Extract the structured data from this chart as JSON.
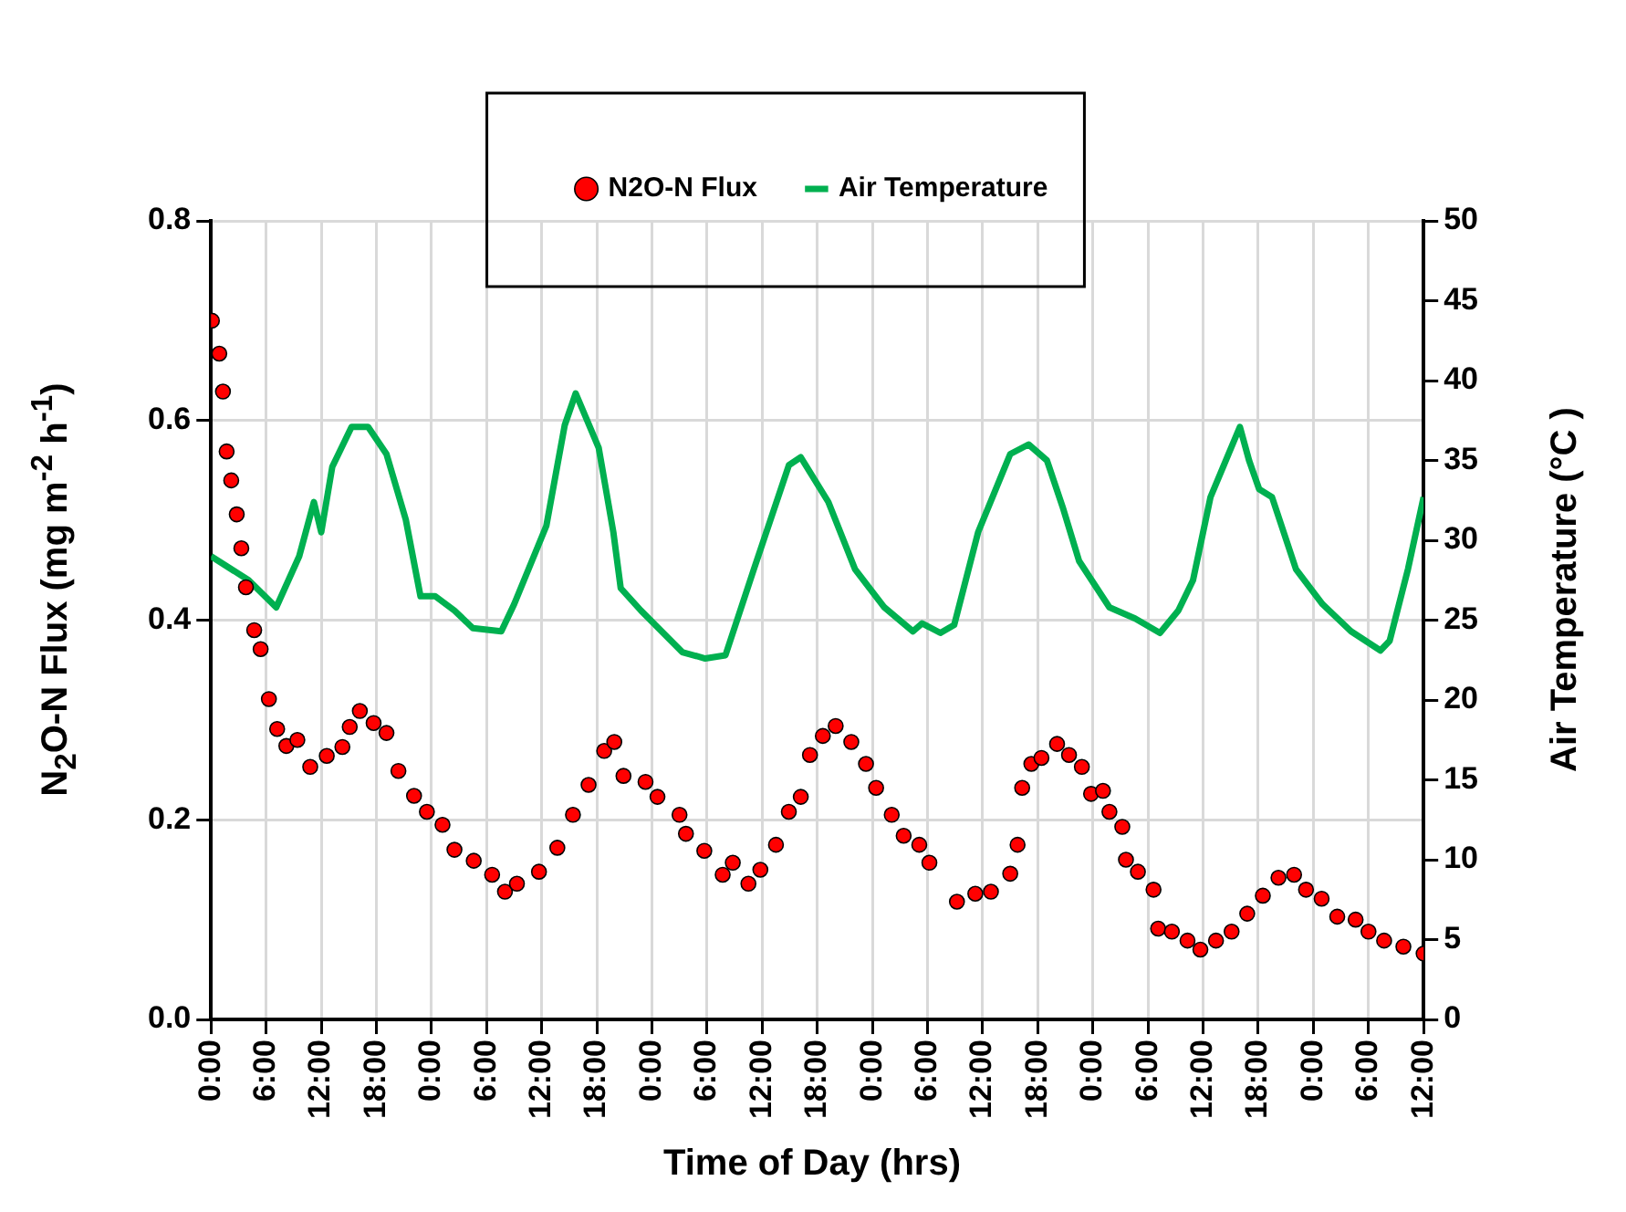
{
  "chart_data": {
    "type": "scatter",
    "xlabel": "Time of Day (hrs)",
    "ylabel": "N$_{2}$O-N Flux (mg m$^{-2}$ h$^{-1}$)",
    "y2label": "Air Temperature (°C )",
    "xlim": [
      "--01-01T00:00",
      "--01-06T12:00"
    ],
    "xticks": [
      {
        "value": "--01-01T00:00",
        "label": "0:00"
      },
      {
        "value": "--01-01T06:00",
        "label": "6:00"
      },
      {
        "value": "--01-01T12:00",
        "label": "12:00"
      },
      {
        "value": "--01-01T18:00",
        "label": "18:00"
      },
      {
        "value": "--01-02T00:00",
        "label": "0:00"
      },
      {
        "value": "--01-02T06:00",
        "label": "6:00"
      },
      {
        "value": "--01-02T12:00",
        "label": "12:00"
      },
      {
        "value": "--01-02T18:00",
        "label": "18:00"
      },
      {
        "value": "--01-03T00:00",
        "label": "0:00"
      },
      {
        "value": "--01-03T06:00",
        "label": "6:00"
      },
      {
        "value": "--01-03T12:00",
        "label": "12:00"
      },
      {
        "value": "--01-03T18:00",
        "label": "18:00"
      },
      {
        "value": "--01-04T00:00",
        "label": "0:00"
      },
      {
        "value": "--01-04T06:00",
        "label": "6:00"
      },
      {
        "value": "--01-04T12:00",
        "label": "12:00"
      },
      {
        "value": "--01-04T18:00",
        "label": "18:00"
      },
      {
        "value": "--01-05T00:00",
        "label": "0:00"
      },
      {
        "value": "--01-05T06:00",
        "label": "6:00"
      },
      {
        "value": "--01-05T12:00",
        "label": "12:00"
      },
      {
        "value": "--01-05T18:00",
        "label": "18:00"
      },
      {
        "value": "--01-06T00:00",
        "label": "0:00"
      },
      {
        "value": "--01-06T06:00",
        "label": "6:00"
      },
      {
        "value": "--01-06T12:00",
        "label": "12:00"
      }
    ],
    "ylim": [
      0,
      0.8
    ],
    "yticks": [
      {
        "value": 0,
        "label": "0.0"
      },
      0.2,
      0.4,
      0.6,
      0.8
    ],
    "y2lim": [
      0,
      50
    ],
    "y2ticks": [
      0,
      5,
      10,
      15,
      20,
      25,
      30,
      35,
      40,
      45,
      50
    ],
    "grid": true,
    "legend": "top",
    "series": [
      {
        "name": "N2O-N Flux",
        "type": "scatter",
        "marker": "circle",
        "color": "#ff0000",
        "x": [
          "--01-01T00:06",
          "--01-01T00:54",
          "--01-01T01:18",
          "--01-01T01:42",
          "--01-01T02:12",
          "--01-01T02:48",
          "--01-01T03:18",
          "--01-01T03:48",
          "--01-01T04:42",
          "--01-01T05:24",
          "--01-01T06:18",
          "--01-01T07:12",
          "--01-01T08:12",
          "--01-01T09:24",
          "--01-01T10:48",
          "--01-01T12:36",
          "--01-01T14:18",
          "--01-01T15:06",
          "--01-01T16:12",
          "--01-01T17:42",
          "--01-01T19:06",
          "--01-01T20:24",
          "--01-01T22:06",
          "--01-01T23:30",
          "--01-02T01:12",
          "--01-02T02:30",
          "--01-02T04:36",
          "--01-02T06:36",
          "--01-02T08:00",
          "--01-02T09:18",
          "--01-02T11:42",
          "--01-02T13:42",
          "--01-02T15:24",
          "--01-02T17:06",
          "--01-02T18:48",
          "--01-02T19:54",
          "--01-02T20:54",
          "--01-02T23:18",
          "--01-03T00:36",
          "--01-03T03:00",
          "--01-03T03:42",
          "--01-03T05:42",
          "--01-03T07:42",
          "--01-03T08:48",
          "--01-03T10:30",
          "--01-03T11:48",
          "--01-03T13:30",
          "--01-03T14:54",
          "--01-03T16:12",
          "--01-03T17:12",
          "--01-03T18:36",
          "--01-03T20:00",
          "--01-03T21:42",
          "--01-03T23:18",
          "--01-04T00:24",
          "--01-04T02:06",
          "--01-04T03:24",
          "--01-04T05:06",
          "--01-04T06:12",
          "--01-04T09:12",
          "--01-04T11:12",
          "--01-04T12:54",
          "--01-04T15:00",
          "--01-04T15:48",
          "--01-04T16:18",
          "--01-04T17:18",
          "--01-04T18:24",
          "--01-04T20:06",
          "--01-04T21:24",
          "--01-04T22:48",
          "--01-04T23:48",
          "--01-05T01:06",
          "--01-05T01:48",
          "--01-05T03:12",
          "--01-05T03:36",
          "--01-05T04:54",
          "--01-05T06:36",
          "--01-05T07:06",
          "--01-05T08:36",
          "--01-05T10:18",
          "--01-05T11:42",
          "--01-05T13:24",
          "--01-05T15:06",
          "--01-05T16:48",
          "--01-05T18:30",
          "--01-05T20:12",
          "--01-05T21:54",
          "--01-05T23:12",
          "--01-06T00:54",
          "--01-06T02:36",
          "--01-06T04:36",
          "--01-06T06:00",
          "--01-06T07:42",
          "--01-06T09:48",
          "--01-06T12:00"
        ],
        "values": [
          0.7,
          0.667,
          0.629,
          0.569,
          0.54,
          0.506,
          0.472,
          0.433,
          0.39,
          0.371,
          0.321,
          0.291,
          0.274,
          0.28,
          0.253,
          0.264,
          0.273,
          0.293,
          0.309,
          0.297,
          0.287,
          0.249,
          0.224,
          0.208,
          0.195,
          0.17,
          0.159,
          0.145,
          0.128,
          0.136,
          0.148,
          0.172,
          0.205,
          0.235,
          0.269,
          0.278,
          0.244,
          0.238,
          0.223,
          0.205,
          0.186,
          0.169,
          0.145,
          0.157,
          0.136,
          0.15,
          0.175,
          0.208,
          0.223,
          0.265,
          0.284,
          0.294,
          0.278,
          0.256,
          0.232,
          0.205,
          0.184,
          0.175,
          0.157,
          0.118,
          0.126,
          0.128,
          0.146,
          0.175,
          0.232,
          0.256,
          0.262,
          0.276,
          0.265,
          0.253,
          0.226,
          0.229,
          0.208,
          0.193,
          0.16,
          0.148,
          0.13,
          0.091,
          0.088,
          0.079,
          0.07,
          0.079,
          0.088,
          0.106,
          0.124,
          0.142,
          0.145,
          0.13,
          0.121,
          0.103,
          0.1,
          0.088,
          0.079,
          0.073,
          0.066
        ]
      },
      {
        "name": "Air Temperature",
        "type": "line",
        "marker": "none",
        "axis": "y2",
        "color": "#00b050",
        "x": [
          "--01-01T00:00",
          "--01-01T04:06",
          "--01-01T07:06",
          "--01-01T09:36",
          "--01-01T11:12",
          "--01-01T12:00",
          "--01-01T13:12",
          "--01-01T15:18",
          "--01-01T17:06",
          "--01-01T19:06",
          "--01-01T21:12",
          "--01-01T22:48",
          "--01-02T00:24",
          "--01-02T02:30",
          "--01-02T04:30",
          "--01-02T07:36",
          "--01-02T09:00",
          "--01-02T12:30",
          "--01-02T14:30",
          "--01-02T15:42",
          "--01-02T18:12",
          "--01-02T19:48",
          "--01-02T20:36",
          "--01-02T22:48",
          "--01-03T03:18",
          "--01-03T05:48",
          "--01-03T08:00",
          "--01-03T11:06",
          "--01-03T14:54",
          "--01-03T16:12",
          "--01-03T19:12",
          "--01-03T22:06",
          "--01-04T01:18",
          "--01-04T04:24",
          "--01-04T05:24",
          "--01-04T07:24",
          "--01-04T08:54",
          "--01-04T11:30",
          "--01-04T15:00",
          "--01-04T17:00",
          "--01-04T19:00",
          "--01-04T20:42",
          "--01-04T22:30",
          "--01-05T01:48",
          "--01-05T04:36",
          "--01-05T07:18",
          "--01-05T09:18",
          "--01-05T10:54",
          "--01-05T12:48",
          "--01-05T16:00",
          "--01-05T17:00",
          "--01-05T18:06",
          "--01-05T19:30",
          "--01-05T22:06",
          "--01-06T01:00",
          "--01-06T04:06",
          "--01-06T07:18",
          "--01-06T08:18",
          "--01-06T10:18",
          "--01-06T12:00"
        ],
        "values": [
          29.0,
          27.5,
          25.8,
          29.0,
          32.4,
          30.5,
          34.6,
          37.1,
          37.1,
          35.4,
          31.3,
          26.5,
          26.5,
          25.6,
          24.5,
          24.3,
          26.0,
          30.9,
          37.2,
          39.2,
          35.8,
          30.5,
          27.0,
          25.6,
          23.0,
          22.6,
          22.8,
          28.2,
          34.7,
          35.2,
          32.4,
          28.2,
          25.8,
          24.3,
          24.8,
          24.2,
          24.7,
          30.5,
          35.4,
          36.0,
          35.0,
          32.1,
          28.7,
          25.8,
          25.1,
          24.2,
          25.6,
          27.5,
          32.7,
          37.1,
          35.0,
          33.2,
          32.7,
          28.2,
          26.0,
          24.3,
          23.1,
          23.7,
          28.2,
          32.7
        ]
      }
    ]
  }
}
